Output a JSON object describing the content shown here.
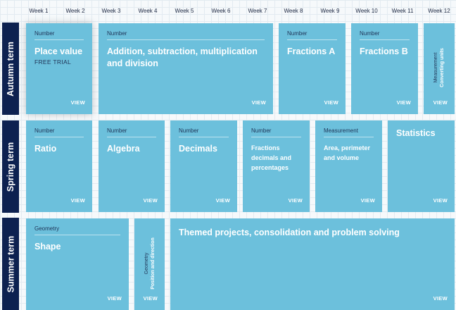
{
  "weeks": [
    "Week 1",
    "Week 2",
    "Week 3",
    "Week 4",
    "Week 5",
    "Week 6",
    "Week 7",
    "Week 8",
    "Week 9",
    "Week 10",
    "Week 11",
    "Week 12"
  ],
  "terms": {
    "autumn": "Autumn term",
    "spring": "Spring term",
    "summer": "Summer term"
  },
  "autumn": {
    "place_value": {
      "category": "Number",
      "title": "Place value",
      "subtitle": "FREE TRIAL",
      "view": "VIEW"
    },
    "addition": {
      "category": "Number",
      "title": "Addition, subtraction, multiplication and division",
      "view": "VIEW"
    },
    "fractions_a": {
      "category": "Number",
      "title": "Fractions A",
      "view": "VIEW"
    },
    "fractions_b": {
      "category": "Number",
      "title": "Fractions B",
      "view": "VIEW"
    },
    "converting_units": {
      "category": "Measurement",
      "title": "Converting units",
      "view": "VIEW"
    }
  },
  "spring": {
    "ratio": {
      "category": "Number",
      "title": "Ratio",
      "view": "VIEW"
    },
    "algebra": {
      "category": "Number",
      "title": "Algebra",
      "view": "VIEW"
    },
    "decimals": {
      "category": "Number",
      "title": "Decimals",
      "view": "VIEW"
    },
    "fdp": {
      "category": "Number",
      "title": "Fractions decimals and percentages",
      "view": "VIEW"
    },
    "area": {
      "category": "Measurement",
      "title": "Area, perimeter and volume",
      "view": "VIEW"
    },
    "statistics": {
      "title": "Statistics",
      "view": "VIEW"
    }
  },
  "summer": {
    "shape": {
      "category": "Geometry",
      "title": "Shape",
      "view": "VIEW"
    },
    "position": {
      "category": "Geometry",
      "title": "Position and direction",
      "view": "VIEW"
    },
    "themed": {
      "title": "Themed projects, consolidation and problem solving",
      "view": "VIEW"
    }
  }
}
